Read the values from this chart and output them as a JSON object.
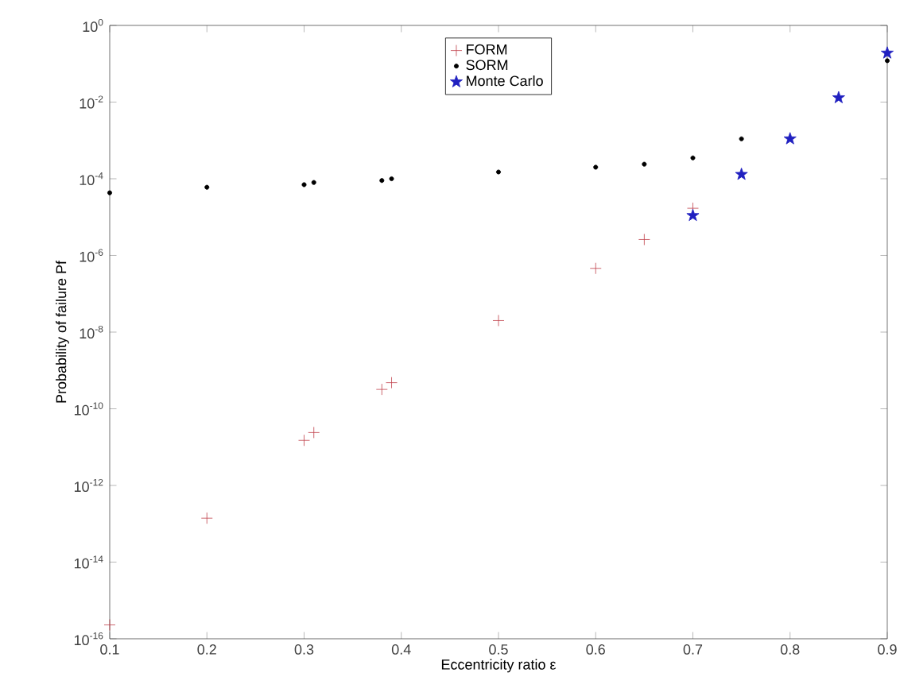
{
  "chart_data": {
    "type": "scatter",
    "xlabel": "Eccentricity ratio ε",
    "ylabel": "Probability of failure Pf",
    "log": "y",
    "legend": "top",
    "grid": false,
    "xlim": [
      0.1,
      0.9
    ],
    "xticks": [
      0.1,
      0.2,
      0.3,
      0.4,
      0.5,
      0.6,
      0.7,
      0.8,
      0.9
    ],
    "ylim": [
      1e-16,
      1
    ],
    "yticks": [
      {
        "value": 1e-16,
        "label": "10$^{-16}$"
      },
      {
        "value": 1e-14,
        "label": "10$^{-14}$"
      },
      {
        "value": 1e-12,
        "label": "10$^{-12}$"
      },
      {
        "value": 1e-10,
        "label": "10$^{-10}$"
      },
      {
        "value": 1e-08,
        "label": "10$^{-8}$"
      },
      {
        "value": 1e-06,
        "label": "10$^{-6}$"
      },
      {
        "value": 0.0001,
        "label": "10$^{-4}$"
      },
      {
        "value": 0.01,
        "label": "10$^{-2}$"
      },
      {
        "value": 1,
        "label": "10$^{0}$"
      }
    ],
    "series": [
      {
        "name": "FORM",
        "color": "#c0404a",
        "marker": "cross",
        "x": [
          0.1,
          0.2,
          0.3,
          0.31,
          0.38,
          0.39,
          0.5,
          0.6,
          0.65,
          0.7
        ],
        "values": [
          2.3e-16,
          1.4e-13,
          1.5e-11,
          2.4e-11,
          3.2e-10,
          4.8e-10,
          2e-08,
          4.6e-07,
          2.6e-06,
          1.7e-05
        ]
      },
      {
        "name": "SORM",
        "color": "#000000",
        "marker": "circle",
        "x": [
          0.1,
          0.2,
          0.3,
          0.31,
          0.38,
          0.39,
          0.5,
          0.6,
          0.65,
          0.7,
          0.75,
          0.9
        ],
        "values": [
          4.3e-05,
          6e-05,
          7e-05,
          8e-05,
          9e-05,
          0.0001,
          0.00015,
          0.0002,
          0.00024,
          0.00035,
          0.0011,
          0.12
        ]
      },
      {
        "name": "Monte Carlo",
        "color": "#2020c0",
        "marker": "star",
        "x": [
          0.7,
          0.75,
          0.8,
          0.85,
          0.9
        ],
        "values": [
          1.1e-05,
          0.00013,
          0.0011,
          0.013,
          0.19
        ]
      }
    ]
  }
}
